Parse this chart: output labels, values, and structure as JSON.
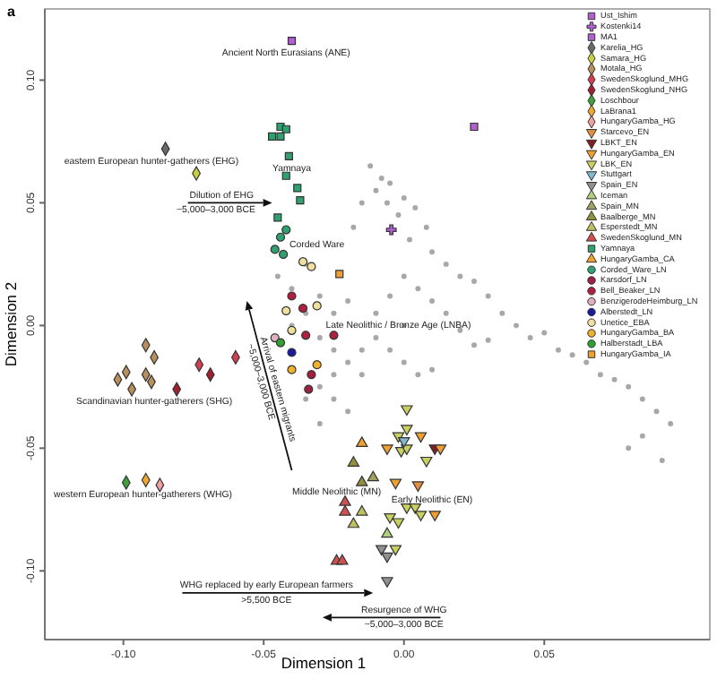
{
  "chart_data": {
    "type": "scatter",
    "title": "a",
    "xlabel": "Dimension 1",
    "ylabel": "Dimension 2",
    "xlim": [
      -0.128,
      0.109
    ],
    "ylim": [
      -0.128,
      0.129
    ],
    "xticks": [
      {
        "value": -0.1,
        "label": "-0.10"
      },
      {
        "value": -0.05,
        "label": "-0.05"
      },
      {
        "value": 0,
        "label": "0.00"
      },
      {
        "value": 0.05,
        "label": "0.05"
      }
    ],
    "yticks": [
      {
        "value": -0.1,
        "label": "-0.10"
      },
      {
        "value": -0.05,
        "label": "-0.05"
      },
      {
        "value": 0,
        "label": "0.00"
      },
      {
        "value": 0.05,
        "label": "0.05"
      },
      {
        "value": 0.1,
        "label": "0.10"
      }
    ],
    "grid": false,
    "legend": "top right",
    "annotations": [
      "Ancient North Eurasians (ANE)",
      "eastern European hunter-gatherers (EHG)",
      "Yamnaya",
      "Dilution of EHG",
      "~5,000–3,000 BCE",
      "Corded Ware",
      "Late Neolithic / Bronze Age (LNBA)",
      "Scandinavian hunter-gatherers (SHG)",
      "western European hunter-gatherers (WHG)",
      "Arrival of eastern migrants",
      "~5,000–3,000 BCE",
      "Middle Neolithic (MN)",
      "Early Neolithic (EN)",
      "WHG replaced by early European farmers",
      ">5,500 BCE",
      "Resurgence of WHG",
      "~5,000–3,000 BCE"
    ],
    "series": [
      {
        "color": "#a8a8a8",
        "marker": "circle",
        "x": [
          -0.012,
          -0.008,
          -0.01,
          -0.005,
          -0.015,
          -0.006,
          0.0,
          -0.002,
          0.004,
          0.008,
          0.002,
          -0.018,
          0.01,
          0.015,
          0.02,
          0.025,
          0.03,
          0.035,
          0.04,
          0.045,
          0.05,
          0.055,
          0.06,
          0.065,
          0.07,
          0.075,
          0.08,
          0.085,
          0.09,
          0.095,
          0.085,
          0.092,
          0.08,
          0.0,
          0.005,
          -0.005,
          0.01,
          -0.01,
          0.0,
          0.015,
          0.02,
          0.025,
          0.03,
          -0.02,
          -0.025,
          -0.03,
          -0.035,
          -0.03,
          -0.025,
          -0.02,
          -0.015,
          -0.025,
          -0.03,
          -0.035,
          -0.025,
          -0.02,
          -0.03,
          -0.015,
          -0.01,
          -0.005,
          0.0,
          0.005,
          0.01,
          -0.04,
          -0.045,
          -0.035,
          -0.04
        ],
        "values": [
          0.065,
          0.06,
          0.055,
          0.058,
          0.05,
          0.05,
          0.052,
          0.045,
          0.048,
          0.04,
          0.035,
          0.04,
          0.03,
          0.025,
          0.02,
          0.018,
          0.012,
          0.005,
          0.0,
          -0.005,
          -0.003,
          -0.01,
          -0.012,
          -0.015,
          -0.02,
          -0.022,
          -0.025,
          -0.03,
          -0.035,
          -0.04,
          -0.045,
          -0.055,
          -0.05,
          0.02,
          0.015,
          0.012,
          0.01,
          0.005,
          0.0,
          0.005,
          -0.002,
          -0.008,
          -0.006,
          0.01,
          0.005,
          0.012,
          0.005,
          -0.005,
          -0.01,
          -0.015,
          -0.02,
          -0.02,
          -0.025,
          -0.03,
          -0.03,
          -0.035,
          -0.04,
          -0.01,
          -0.005,
          -0.01,
          -0.015,
          -0.02,
          -0.018,
          0.015,
          0.02,
          0.025,
          0.0
        ]
      },
      {
        "name": "Ust_Ishim",
        "color": "#b060d0",
        "marker": "square",
        "x": [
          0.025
        ],
        "values": [
          0.081
        ]
      },
      {
        "name": "Kostenki14",
        "color": "#b060d0",
        "marker": "cross",
        "x": [
          -0.0045
        ],
        "values": [
          0.039
        ]
      },
      {
        "name": "MA1",
        "color": "#b060d0",
        "marker": "square",
        "x": [
          -0.04
        ],
        "values": [
          0.116
        ]
      },
      {
        "name": "Karelia_HG",
        "color": "#6a6a6a",
        "marker": "diamond",
        "x": [
          -0.085
        ],
        "values": [
          0.072
        ]
      },
      {
        "name": "Samara_HG",
        "color": "#c8d040",
        "marker": "diamond",
        "x": [
          -0.074
        ],
        "values": [
          0.062
        ]
      },
      {
        "name": "Motala_HG",
        "color": "#b89060",
        "marker": "diamond",
        "x": [
          -0.092,
          -0.089,
          -0.099,
          -0.102,
          -0.092,
          -0.09,
          -0.097
        ],
        "values": [
          -0.008,
          -0.013,
          -0.019,
          -0.022,
          -0.02,
          -0.023,
          -0.026
        ]
      },
      {
        "name": "SwedenSkoglund_MHG",
        "color": "#d04050",
        "marker": "diamond",
        "x": [
          -0.06,
          -0.073
        ],
        "values": [
          -0.013,
          -0.016
        ]
      },
      {
        "name": "SwedenSkoglund_NHG",
        "color": "#a02030",
        "marker": "diamond",
        "x": [
          -0.069,
          -0.081
        ],
        "values": [
          -0.02,
          -0.026
        ]
      },
      {
        "name": "Loschbour",
        "color": "#40a040",
        "marker": "diamond",
        "x": [
          -0.099
        ],
        "values": [
          -0.064
        ]
      },
      {
        "name": "LaBrana1",
        "color": "#f0a830",
        "marker": "diamond",
        "x": [
          -0.092
        ],
        "values": [
          -0.063
        ]
      },
      {
        "name": "HungaryGamba_HG",
        "color": "#f0a0a0",
        "marker": "diamond",
        "x": [
          -0.087
        ],
        "values": [
          -0.065
        ]
      },
      {
        "name": "Starcevo_EN",
        "color": "#e09040",
        "marker": "triangle-down",
        "x": [
          0.005
        ],
        "values": [
          -0.065
        ]
      },
      {
        "name": "LBKT_EN",
        "color": "#802020",
        "marker": "triangle-down",
        "x": [
          0.011
        ],
        "values": [
          -0.05
        ]
      },
      {
        "name": "HungaryGamba_EN",
        "color": "#f0a030",
        "marker": "triangle-down",
        "x": [
          0.006,
          -0.006,
          0.013,
          -0.003,
          0.011
        ],
        "values": [
          -0.045,
          -0.05,
          -0.05,
          -0.064,
          -0.077
        ]
      },
      {
        "name": "LBK_EN",
        "color": "#c8d060",
        "marker": "triangle-down",
        "x": [
          0.001,
          -0.002,
          0.001,
          -0.001,
          0.001,
          0.008,
          0.001,
          0.004,
          0.006,
          -0.005,
          -0.002,
          -0.003
        ],
        "values": [
          -0.034,
          -0.045,
          -0.042,
          -0.051,
          -0.05,
          -0.055,
          -0.074,
          -0.074,
          -0.077,
          -0.078,
          -0.08,
          -0.091
        ]
      },
      {
        "name": "Stuttgart",
        "color": "#80b8d0",
        "marker": "triangle-down",
        "x": [
          0.0
        ],
        "values": [
          -0.047
        ]
      },
      {
        "name": "Spain_EN",
        "color": "#909090",
        "marker": "triangle-down",
        "x": [
          -0.008,
          -0.006,
          -0.006
        ],
        "values": [
          -0.091,
          -0.094,
          -0.104
        ]
      },
      {
        "name": "Iceman",
        "color": "#b0d080",
        "marker": "triangle",
        "x": [
          -0.006
        ],
        "values": [
          -0.085
        ]
      },
      {
        "name": "Spain_MN",
        "color": "#a0a060",
        "marker": "triangle",
        "x": [
          -0.011
        ],
        "values": [
          -0.062
        ]
      },
      {
        "name": "Baalberge_MN",
        "color": "#909040",
        "marker": "triangle",
        "x": [
          -0.018,
          -0.015
        ],
        "values": [
          -0.056,
          -0.064
        ]
      },
      {
        "name": "Esperstedt_MN",
        "color": "#c0c060",
        "marker": "triangle",
        "x": [
          -0.015,
          -0.018
        ],
        "values": [
          -0.076,
          -0.081
        ]
      },
      {
        "name": "SwedenSkoglund_MN",
        "color": "#d05050",
        "marker": "triangle",
        "x": [
          -0.021,
          -0.021,
          -0.024,
          -0.022
        ],
        "values": [
          -0.072,
          -0.076,
          -0.096,
          -0.096
        ]
      },
      {
        "name": "Yamnaya",
        "color": "#30a070",
        "marker": "square",
        "x": [
          -0.044,
          -0.042,
          -0.047,
          -0.044,
          -0.041,
          -0.042,
          -0.038,
          -0.037,
          -0.045
        ],
        "values": [
          0.081,
          0.08,
          0.077,
          0.077,
          0.069,
          0.061,
          0.056,
          0.051,
          0.044
        ]
      },
      {
        "name": "HungaryGamba_CA",
        "color": "#f0a030",
        "marker": "triangle",
        "x": [
          -0.015
        ],
        "values": [
          -0.048
        ]
      },
      {
        "name": "Corded_Ware_LN",
        "color": "#30a070",
        "marker": "circle",
        "x": [
          -0.042,
          -0.044,
          -0.046,
          -0.043
        ],
        "values": [
          0.039,
          0.036,
          0.031,
          0.029
        ]
      },
      {
        "name": "Karsdorf_LN",
        "color": "#a02040",
        "marker": "circle",
        "x": [
          -0.033,
          -0.034
        ],
        "values": [
          -0.02,
          -0.026
        ]
      },
      {
        "name": "Bell_Beaker_LN",
        "color": "#b02040",
        "marker": "circle",
        "x": [
          -0.04,
          -0.036,
          -0.035,
          -0.025
        ],
        "values": [
          0.012,
          0.007,
          -0.004,
          -0.004
        ]
      },
      {
        "name": "BenzigerodeHeimburg_LN",
        "color": "#e0b0c0",
        "marker": "circle",
        "x": [
          -0.046
        ],
        "values": [
          -0.005
        ]
      },
      {
        "name": "Alberstedt_LN",
        "color": "#1a1a9a",
        "marker": "circle",
        "x": [
          -0.04
        ],
        "values": [
          -0.011
        ]
      },
      {
        "name": "Unetice_EBA",
        "color": "#f0e0a0",
        "marker": "circle",
        "x": [
          -0.036,
          -0.033,
          -0.042,
          -0.031,
          -0.04
        ],
        "values": [
          0.026,
          0.024,
          0.006,
          0.008,
          -0.002
        ]
      },
      {
        "name": "HungaryGamba_BA",
        "color": "#f0b030",
        "marker": "circle",
        "x": [
          -0.04,
          -0.031
        ],
        "values": [
          -0.018,
          -0.016
        ]
      },
      {
        "name": "Halberstadt_LBA",
        "color": "#30a030",
        "marker": "circle",
        "x": [
          -0.044
        ],
        "values": [
          -0.007
        ]
      },
      {
        "name": "HungaryGamba_IA",
        "color": "#f0a030",
        "marker": "square",
        "x": [
          -0.023
        ],
        "values": [
          0.021
        ]
      }
    ]
  }
}
